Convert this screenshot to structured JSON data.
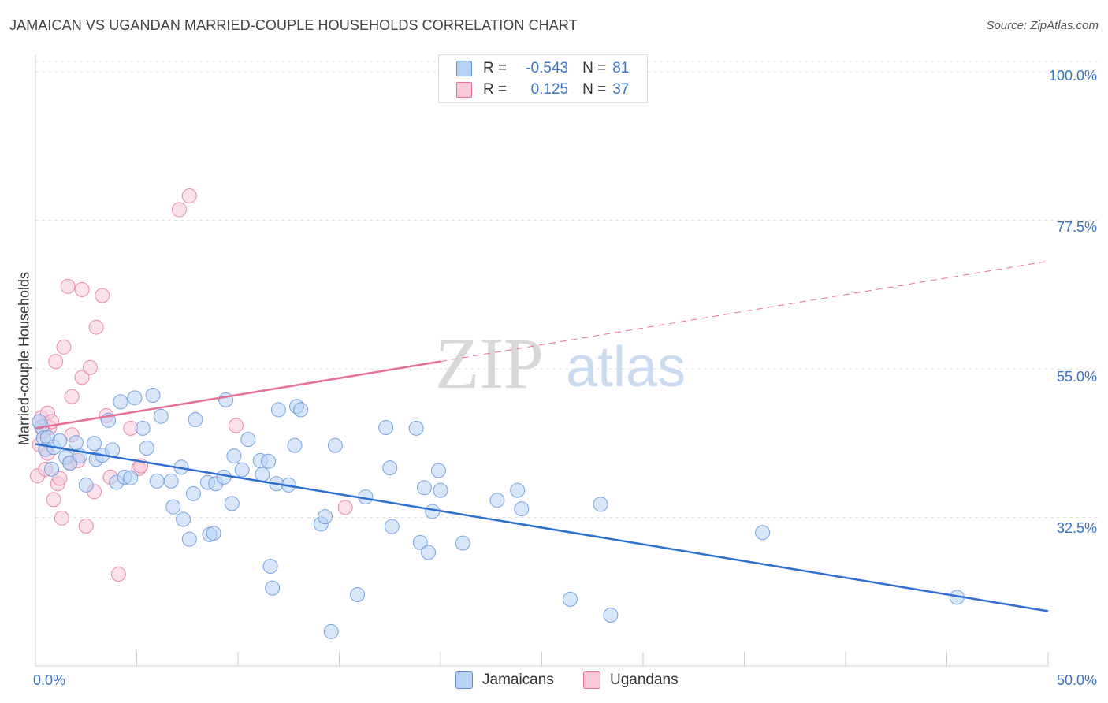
{
  "chart_data": {
    "type": "scatter",
    "title": "JAMAICAN VS UGANDAN MARRIED-COUPLE HOUSEHOLDS CORRELATION CHART",
    "source": "Source: ZipAtlas.com",
    "ylabel": "Married-couple Households",
    "xlim": [
      0,
      50
    ],
    "ylim": [
      10,
      102.5
    ],
    "x_tick_labels": [
      "0.0%",
      "50.0%"
    ],
    "y_ticks": [
      100,
      77.5,
      55,
      32.5
    ],
    "y_tick_labels": [
      "100.0%",
      "77.5%",
      "55.0%",
      "32.5%"
    ],
    "watermark": {
      "zip": "ZIP",
      "atlas": "atlas"
    },
    "legend": {
      "rows": [
        {
          "r_label": "R =",
          "r_value": "-0.543",
          "n_label": "N =",
          "n_value": "81"
        },
        {
          "r_label": "R =",
          "r_value": "0.125",
          "n_label": "N =",
          "n_value": "37"
        }
      ]
    },
    "series": [
      {
        "name": "Jamaicans",
        "color": "#5b8fd8",
        "fill": "#b8d2f4",
        "trend": {
          "x0": 0,
          "y0": 43.6,
          "x1": 50,
          "y1": 18.3,
          "dash_from": null
        },
        "points": [
          [
            0.3,
            46.2
          ],
          [
            0.4,
            44.5
          ],
          [
            0.5,
            42.8
          ],
          [
            0.6,
            44.6
          ],
          [
            0.8,
            39.8
          ],
          [
            0.9,
            43.1
          ],
          [
            1.2,
            44.1
          ],
          [
            1.5,
            41.6
          ],
          [
            1.7,
            40.7
          ],
          [
            2.0,
            43.8
          ],
          [
            2.2,
            41.8
          ],
          [
            2.5,
            37.4
          ],
          [
            2.9,
            43.7
          ],
          [
            3.0,
            41.3
          ],
          [
            3.3,
            41.9
          ],
          [
            3.6,
            47.2
          ],
          [
            3.8,
            42.7
          ],
          [
            4.0,
            37.8
          ],
          [
            4.2,
            50.0
          ],
          [
            4.4,
            38.6
          ],
          [
            4.7,
            38.5
          ],
          [
            4.9,
            50.6
          ],
          [
            5.3,
            46.0
          ],
          [
            5.5,
            43.0
          ],
          [
            5.8,
            51.0
          ],
          [
            6.0,
            38.0
          ],
          [
            6.2,
            47.8
          ],
          [
            6.7,
            38.0
          ],
          [
            6.8,
            34.1
          ],
          [
            7.2,
            40.1
          ],
          [
            7.3,
            32.2
          ],
          [
            7.6,
            29.2
          ],
          [
            7.8,
            36.1
          ],
          [
            7.9,
            47.3
          ],
          [
            8.5,
            37.8
          ],
          [
            8.6,
            29.9
          ],
          [
            8.8,
            30.1
          ],
          [
            8.9,
            37.6
          ],
          [
            9.3,
            38.6
          ],
          [
            9.4,
            50.3
          ],
          [
            9.7,
            34.6
          ],
          [
            9.8,
            41.8
          ],
          [
            10.2,
            39.7
          ],
          [
            10.5,
            44.3
          ],
          [
            11.1,
            41.1
          ],
          [
            11.2,
            39.0
          ],
          [
            11.5,
            41.0
          ],
          [
            11.6,
            25.1
          ],
          [
            11.7,
            21.8
          ],
          [
            11.9,
            37.6
          ],
          [
            12.0,
            48.8
          ],
          [
            12.5,
            37.4
          ],
          [
            12.8,
            43.4
          ],
          [
            12.9,
            49.3
          ],
          [
            13.1,
            48.8
          ],
          [
            14.1,
            31.5
          ],
          [
            14.3,
            32.6
          ],
          [
            14.6,
            15.2
          ],
          [
            14.8,
            43.4
          ],
          [
            15.9,
            20.8
          ],
          [
            16.3,
            35.6
          ],
          [
            17.3,
            46.1
          ],
          [
            17.5,
            40.0
          ],
          [
            17.6,
            31.1
          ],
          [
            18.8,
            46.0
          ],
          [
            19.0,
            28.7
          ],
          [
            19.2,
            37.0
          ],
          [
            19.4,
            27.2
          ],
          [
            19.6,
            33.4
          ],
          [
            19.9,
            39.6
          ],
          [
            20.0,
            36.6
          ],
          [
            21.1,
            28.6
          ],
          [
            22.8,
            35.1
          ],
          [
            23.8,
            36.6
          ],
          [
            24.0,
            33.8
          ],
          [
            26.4,
            20.1
          ],
          [
            27.9,
            34.5
          ],
          [
            28.4,
            17.7
          ],
          [
            35.9,
            30.2
          ],
          [
            45.5,
            20.4
          ],
          [
            0.2,
            47.0
          ]
        ]
      },
      {
        "name": "Ugandans",
        "color": "#e56f98",
        "fill": "#f8c9d9",
        "trend": {
          "x0": 0,
          "y0": 46.0,
          "x1": 50,
          "y1": 71.3,
          "dash_from": 20
        },
        "points": [
          [
            0.1,
            38.8
          ],
          [
            0.2,
            43.5
          ],
          [
            0.3,
            47.6
          ],
          [
            0.4,
            45.6
          ],
          [
            0.5,
            39.8
          ],
          [
            0.6,
            42.2
          ],
          [
            0.6,
            48.3
          ],
          [
            0.7,
            46.1
          ],
          [
            0.8,
            47.0
          ],
          [
            0.9,
            35.2
          ],
          [
            1.0,
            56.1
          ],
          [
            1.1,
            37.6
          ],
          [
            1.2,
            38.4
          ],
          [
            1.3,
            32.4
          ],
          [
            1.4,
            58.3
          ],
          [
            1.6,
            67.5
          ],
          [
            1.7,
            40.8
          ],
          [
            1.8,
            45.0
          ],
          [
            1.8,
            50.8
          ],
          [
            2.1,
            41.1
          ],
          [
            2.3,
            53.7
          ],
          [
            2.3,
            67.0
          ],
          [
            2.5,
            31.2
          ],
          [
            2.7,
            55.2
          ],
          [
            2.9,
            36.4
          ],
          [
            3.0,
            61.3
          ],
          [
            3.3,
            66.1
          ],
          [
            3.5,
            47.9
          ],
          [
            3.7,
            38.6
          ],
          [
            4.1,
            23.9
          ],
          [
            4.7,
            46.0
          ],
          [
            5.1,
            39.9
          ],
          [
            5.2,
            40.3
          ],
          [
            7.1,
            79.1
          ],
          [
            7.6,
            81.2
          ],
          [
            9.9,
            46.4
          ],
          [
            15.3,
            34.0
          ]
        ]
      }
    ]
  }
}
